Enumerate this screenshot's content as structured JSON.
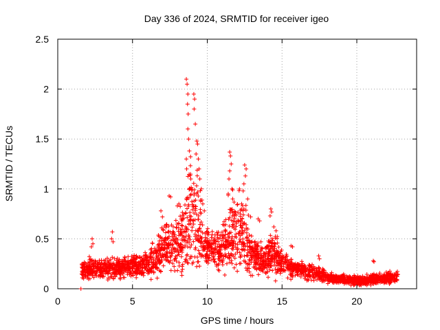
{
  "chart_data": {
    "type": "scatter",
    "title": "Day 336 of 2024, SRMTID for receiver igeo",
    "xlabel": "GPS time / hours",
    "ylabel": "SRMTID / TECUs",
    "xlim": [
      0,
      24
    ],
    "ylim": [
      0,
      2.5
    ],
    "x_ticks": [
      0,
      5,
      10,
      15,
      20
    ],
    "x_tick_labels": [
      "0",
      "5",
      "10",
      "15",
      "20"
    ],
    "y_ticks": [
      0,
      0.5,
      1,
      1.5,
      2,
      2.5
    ],
    "y_tick_labels": [
      "0",
      "0.5",
      "1",
      "1.5",
      "2",
      "2.5"
    ],
    "grid": true,
    "marker": "plus",
    "color": "#ff0000",
    "envelope": {
      "x": [
        1.5,
        2.0,
        2.5,
        3.0,
        3.5,
        4.0,
        4.5,
        5.0,
        5.5,
        6.0,
        6.5,
        7.0,
        7.5,
        8.0,
        8.5,
        9.0,
        9.5,
        10.0,
        10.5,
        11.0,
        11.5,
        12.0,
        12.5,
        13.0,
        13.5,
        14.0,
        14.5,
        15.0,
        15.5,
        16.0,
        16.5,
        17.0,
        17.5,
        18.0,
        18.5,
        19.0,
        19.5,
        20.0,
        20.5,
        21.0,
        21.5,
        22.0,
        22.5
      ],
      "median": [
        0.18,
        0.2,
        0.2,
        0.19,
        0.2,
        0.21,
        0.22,
        0.22,
        0.23,
        0.25,
        0.3,
        0.38,
        0.42,
        0.45,
        0.55,
        0.7,
        0.6,
        0.42,
        0.38,
        0.4,
        0.55,
        0.55,
        0.5,
        0.35,
        0.3,
        0.3,
        0.35,
        0.25,
        0.22,
        0.2,
        0.18,
        0.16,
        0.15,
        0.12,
        0.1,
        0.1,
        0.09,
        0.08,
        0.08,
        0.1,
        0.1,
        0.1,
        0.12
      ],
      "spread": [
        0.06,
        0.07,
        0.08,
        0.07,
        0.07,
        0.07,
        0.07,
        0.07,
        0.08,
        0.1,
        0.12,
        0.15,
        0.16,
        0.18,
        0.3,
        0.38,
        0.3,
        0.12,
        0.12,
        0.15,
        0.25,
        0.28,
        0.22,
        0.12,
        0.1,
        0.12,
        0.15,
        0.08,
        0.07,
        0.06,
        0.06,
        0.05,
        0.05,
        0.04,
        0.03,
        0.03,
        0.03,
        0.03,
        0.03,
        0.04,
        0.04,
        0.04,
        0.04
      ]
    },
    "highlight_points": [
      {
        "x": 1.55,
        "y": 0.0
      },
      {
        "x": 2.3,
        "y": 0.5
      },
      {
        "x": 2.35,
        "y": 0.45
      },
      {
        "x": 2.25,
        "y": 0.42
      },
      {
        "x": 3.65,
        "y": 0.57
      },
      {
        "x": 3.6,
        "y": 0.5
      },
      {
        "x": 3.7,
        "y": 0.47
      },
      {
        "x": 6.9,
        "y": 0.78
      },
      {
        "x": 7.0,
        "y": 0.72
      },
      {
        "x": 7.45,
        "y": 0.93
      },
      {
        "x": 7.55,
        "y": 0.92
      },
      {
        "x": 8.1,
        "y": 0.85
      },
      {
        "x": 8.0,
        "y": 0.83
      },
      {
        "x": 8.6,
        "y": 2.1
      },
      {
        "x": 8.65,
        "y": 2.05
      },
      {
        "x": 8.7,
        "y": 1.95
      },
      {
        "x": 8.68,
        "y": 1.85
      },
      {
        "x": 8.72,
        "y": 1.75
      },
      {
        "x": 8.7,
        "y": 1.6
      },
      {
        "x": 8.75,
        "y": 1.5
      },
      {
        "x": 8.8,
        "y": 1.38
      },
      {
        "x": 8.6,
        "y": 1.3
      },
      {
        "x": 8.62,
        "y": 1.2
      },
      {
        "x": 8.9,
        "y": 1.1
      },
      {
        "x": 8.85,
        "y": 1.0
      },
      {
        "x": 9.1,
        "y": 1.95
      },
      {
        "x": 9.15,
        "y": 1.9
      },
      {
        "x": 9.12,
        "y": 1.8
      },
      {
        "x": 9.2,
        "y": 1.65
      },
      {
        "x": 9.3,
        "y": 1.48
      },
      {
        "x": 9.35,
        "y": 1.45
      },
      {
        "x": 9.25,
        "y": 1.35
      },
      {
        "x": 9.4,
        "y": 1.3
      },
      {
        "x": 9.45,
        "y": 1.2
      },
      {
        "x": 9.5,
        "y": 1.1
      },
      {
        "x": 9.6,
        "y": 1.0
      },
      {
        "x": 9.3,
        "y": 0.95
      },
      {
        "x": 9.7,
        "y": 0.85
      },
      {
        "x": 9.8,
        "y": 0.78
      },
      {
        "x": 11.5,
        "y": 1.37
      },
      {
        "x": 11.55,
        "y": 1.33
      },
      {
        "x": 11.6,
        "y": 1.25
      },
      {
        "x": 11.5,
        "y": 1.18
      },
      {
        "x": 11.45,
        "y": 1.1
      },
      {
        "x": 11.65,
        "y": 1.0
      },
      {
        "x": 11.4,
        "y": 0.95
      },
      {
        "x": 11.7,
        "y": 0.9
      },
      {
        "x": 12.5,
        "y": 1.24
      },
      {
        "x": 12.6,
        "y": 1.2
      },
      {
        "x": 12.55,
        "y": 1.13
      },
      {
        "x": 12.45,
        "y": 1.05
      },
      {
        "x": 12.4,
        "y": 0.98
      },
      {
        "x": 12.7,
        "y": 0.9
      },
      {
        "x": 12.3,
        "y": 0.85
      },
      {
        "x": 12.9,
        "y": 0.72
      },
      {
        "x": 13.4,
        "y": 0.7
      },
      {
        "x": 13.5,
        "y": 0.68
      },
      {
        "x": 14.25,
        "y": 0.8
      },
      {
        "x": 14.3,
        "y": 0.77
      },
      {
        "x": 14.2,
        "y": 0.73
      },
      {
        "x": 14.45,
        "y": 0.62
      },
      {
        "x": 14.6,
        "y": 0.58
      },
      {
        "x": 15.6,
        "y": 0.43
      },
      {
        "x": 15.7,
        "y": 0.42
      },
      {
        "x": 17.45,
        "y": 0.33
      },
      {
        "x": 17.5,
        "y": 0.3
      },
      {
        "x": 21.1,
        "y": 0.28
      },
      {
        "x": 21.15,
        "y": 0.27
      }
    ]
  }
}
